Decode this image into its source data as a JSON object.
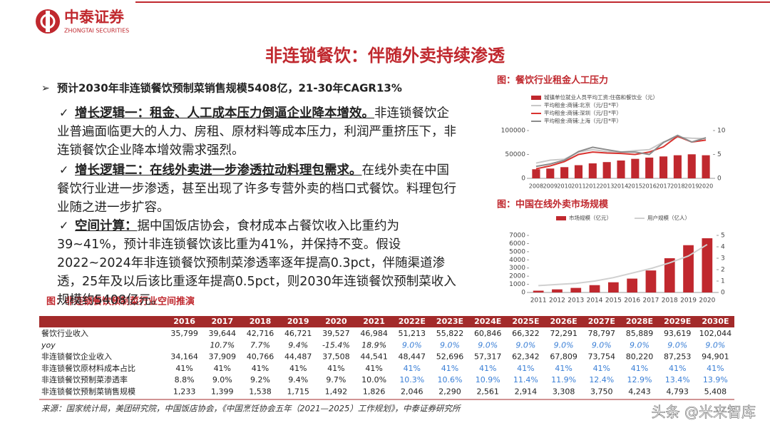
{
  "header": {
    "logo_cn": "中泰证券",
    "logo_en": "ZHONGTAI SECURITIES"
  },
  "title": "非连锁餐饮：伴随外卖持续渗透",
  "main_point": "预计2030年非连锁餐饮预制菜销售规模5408亿，21-30年CAGR13%",
  "points": [
    {
      "heading": "增长逻辑一：租金、人工成本压力倒逼企业降本增效。",
      "body": "非连锁餐饮企业普遍面临更大的人力、房租、原材料等成本压力，利润严重挤压下，非连锁餐饮企业降本增效需求强烈。"
    },
    {
      "heading": "增长逻辑二：在线外卖进一步渗透拉动料理包需求。",
      "body": "在线外卖在中国餐饮行业进一步渗透，甚至出现了许多专营外卖的档口式餐饮。料理包行业随之进一步扩容。"
    },
    {
      "heading": "空间计算：",
      "body": "据中国饭店协会，食材成本占餐饮收入比重约为39~41%，预计非连锁餐饮该比重为41%，并保持不变。假设2022~2024年非连锁餐饮预制菜渗透率逐年提高0.3pct，伴随渠道渗透，25年及以后该比重逐年提高0.5pct，则2030年连锁餐饮预制菜收入规模约5408亿元。"
    }
  ],
  "chart_data": [
    {
      "type": "bar-line",
      "title": "图：餐饮行业租金人工压力",
      "categories": [
        "2008",
        "2009",
        "2010",
        "2011",
        "2012",
        "2013",
        "2014",
        "2015",
        "2016",
        "2017",
        "2018",
        "2019",
        "2020"
      ],
      "series": [
        {
          "name": "城镇单位就业人员平均工资:住宿和餐饮业（元）",
          "type": "bar",
          "color": "#c0282e",
          "values": [
            19000,
            20500,
            23400,
            27500,
            31300,
            34000,
            37300,
            40800,
            43400,
            45800,
            48300,
            50300,
            48300
          ]
        },
        {
          "name": "平均租金:商铺:北京（元/日*平）",
          "type": "line",
          "axis": "y2",
          "color": "#c8c8c8",
          "values": [
            3.2,
            3.8,
            4.0,
            5.5,
            6.0,
            5.6,
            5.5,
            5.8,
            6.0,
            7.6,
            8.6,
            8.4,
            8.3
          ]
        },
        {
          "name": "平均租金:商铺:深圳（元/日*平）",
          "type": "line",
          "axis": "y2",
          "color": "#d9332f",
          "values": [
            2.0,
            2.6,
            3.5,
            5.0,
            5.5,
            5.3,
            5.2,
            5.0,
            5.5,
            6.6,
            8.8,
            7.6,
            8.0
          ]
        },
        {
          "name": "平均租金:商铺:上海（元/日*平）",
          "type": "line",
          "axis": "y2",
          "color": "#8c8c8c",
          "values": [
            2.5,
            3.0,
            3.8,
            5.6,
            6.5,
            6.0,
            5.5,
            5.5,
            5.0,
            7.5,
            9.0,
            7.6,
            8.5
          ]
        }
      ],
      "ylim": [
        0,
        100000
      ],
      "yticks": [
        0,
        50000,
        100000
      ],
      "y2lim": [
        0,
        10
      ],
      "y2ticks": [
        0,
        5,
        10
      ]
    },
    {
      "type": "bar-line",
      "title": "图：中国在线外卖市场规模",
      "categories": [
        "2011",
        "2012",
        "2013",
        "2014",
        "2015",
        "2016",
        "2017",
        "2018",
        "2019",
        "2020"
      ],
      "series": [
        {
          "name": "市场规模（亿元）",
          "type": "bar",
          "color": "#c0282e",
          "values": [
            220,
            380,
            560,
            900,
            1250,
            1700,
            2700,
            4200,
            5800,
            6650
          ]
        },
        {
          "name": "用户规模（亿人）",
          "type": "line",
          "axis": "y2",
          "color": "#d0d0d0",
          "values": [
            0.6,
            0.7,
            0.8,
            1.0,
            1.3,
            1.7,
            2.1,
            2.6,
            3.2,
            4.2
          ]
        }
      ],
      "ylim": [
        0,
        7000
      ],
      "yticks": [
        0,
        1000,
        2000,
        3000,
        4000,
        5000,
        6000,
        7000
      ],
      "y2lim": [
        0,
        5
      ],
      "y2ticks": [
        0,
        1,
        2,
        3,
        4,
        5
      ]
    }
  ],
  "table": {
    "title": "图：非连锁餐饮预制菜行业空间推演",
    "header": [
      "2016",
      "2017",
      "2018",
      "2019",
      "2020",
      "2021",
      "2022E",
      "2023E",
      "2024E",
      "2025E",
      "2026E",
      "2027E",
      "2028E",
      "2029E",
      "2030E"
    ],
    "forecast_color": "#3a7fd6",
    "rows": [
      {
        "label": "餐饮行业收入",
        "cells": [
          "35,799",
          "39,644",
          "42,716",
          "46,721",
          "39,527",
          "46,984",
          "51,213",
          "55,822",
          "60,846",
          "66,322",
          "72,291",
          "78,797",
          "85,889",
          "93,619",
          "102,044"
        ]
      },
      {
        "label": "yoy",
        "italic": true,
        "forecast_colored": true,
        "cells": [
          null,
          "10.7%",
          "7.7%",
          "9.4%",
          "-15.4%",
          "18.9%",
          "9.0%",
          "9.0%",
          "9.0%",
          "9.0%",
          "9.0%",
          "9.0%",
          "9.0%",
          "9.0%",
          "9.0%"
        ]
      },
      {
        "label": "非连锁餐饮企业收入",
        "cells": [
          "34,164",
          "37,909",
          "40,766",
          "44,487",
          "37,508",
          "44,541",
          "48,447",
          "52,696",
          "57,317",
          "62,342",
          "67,809",
          "73,754",
          "80,220",
          "87,253",
          "94,901"
        ]
      },
      {
        "label": "非连锁餐饮原材料成本占比",
        "forecast_colored": true,
        "cells": [
          "41%",
          "41%",
          "41%",
          "41%",
          "41%",
          "41%",
          "41%",
          "41%",
          "41%",
          "41%",
          "41%",
          "41%",
          "41%",
          "41%",
          "41%"
        ]
      },
      {
        "label": "非连锁餐饮预制菜渗透率",
        "forecast_colored": true,
        "cells": [
          "8.8%",
          "9.0%",
          "9.2%",
          "9.4%",
          "9.7%",
          "10.0%",
          "10.3%",
          "10.6%",
          "10.9%",
          "11.4%",
          "11.9%",
          "12.4%",
          "12.9%",
          "13.4%",
          "13.9%"
        ]
      },
      {
        "label": "非连锁餐饮预制菜销售规模",
        "cells": [
          "1,233",
          "1,399",
          "1,538",
          "1,715",
          "1,492",
          "1,826",
          "2,046",
          "2,290",
          "2,561",
          "2,914",
          "3,308",
          "3,750",
          "4,243",
          "4,793",
          "5,408"
        ]
      }
    ]
  },
  "source": "来源：国家统计局，美团研究院，中国饭店协会，《中国烹饪协会五年（2021—2025）工作规划》，中泰证券研究所",
  "watermark": "头条 @米来智库"
}
